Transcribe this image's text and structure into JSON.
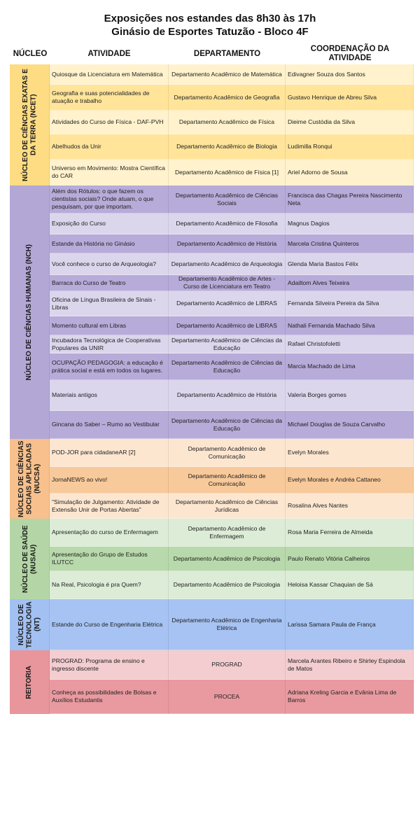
{
  "title": {
    "line1": "Exposições nos estandes das 8h30 às 17h",
    "line2": "Ginásio de Esportes Tatuzão - Bloco 4F"
  },
  "headers": {
    "nucleo": "NÚCLEO",
    "atividade": "ATIVIDADE",
    "departamento": "DEPARTAMENTO",
    "coordenacao": "COORDENAÇÃO DA ATIVIDADE"
  },
  "groups": [
    {
      "name": "NÚCLEO DE CIÊNCIAS EXATAS E DA TERRA (NCET)",
      "colors": {
        "light": "#fff2cc",
        "dark": "#ffe49a",
        "label": "#fddc84"
      },
      "rows": [
        {
          "atividade": "Quiosque da Licenciatura em Matemática",
          "departamento": "Departamento Acadêmico de Matemática",
          "coordenacao": "Edivagner Souza dos Santos",
          "shade": "light"
        },
        {
          "atividade": "Geografia e suas potencialidades de atuação e trabalho",
          "departamento": "Departamento Acadêmico de Geografia",
          "coordenacao": "Gustavo Henrique de Abreu Silva",
          "shade": "dark"
        },
        {
          "atividade": "Atividades do Curso de Física - DAF-PVH",
          "departamento": "Departamento Acadêmico de Física",
          "coordenacao": "Dieime Custódia da Silva",
          "shade": "light"
        },
        {
          "atividade": "Abelhudos da Unir",
          "departamento": "Departamento Acadêmico de Biologia",
          "coordenacao": "Ludimilla Ronqui",
          "shade": "dark"
        },
        {
          "atividade": "Universo em Movimento: Mostra Científica do CAR",
          "departamento": "Departamento Acadêmico de Física [1]",
          "coordenacao": "Ariel Adorno de Sousa",
          "shade": "light"
        }
      ]
    },
    {
      "name": "NÚCLEO DE CIÊNCIAS HUMANAS (NCH)",
      "colors": {
        "light": "#dcd6ec",
        "dark": "#b7abd9",
        "label": "#b3a7d6"
      },
      "rows": [
        {
          "atividade": "Além dos Rótulos: o que fazem os cientistas sociais? Onde atuam, o que pesquisam, por que importam.",
          "departamento": "Departamento Acadêmico de Ciências Sociais",
          "coordenacao": "Francisca das Chagas Pereira Nascimento Neta",
          "shade": "dark"
        },
        {
          "atividade": "Exposição do Curso",
          "departamento": "Departamento Acadêmico de Filosofia",
          "coordenacao": "Magnus Dagios",
          "shade": "light"
        },
        {
          "atividade": "Estande da História no Ginásio",
          "departamento": "Departamento Acadêmico de História",
          "coordenacao": "Marcela Cristina Quinteros",
          "shade": "dark"
        },
        {
          "atividade": "Você conhece o curso de Arqueologia?",
          "departamento": "Departamento Acadêmico de Arqueologia",
          "coordenacao": "Glenda Maria Bastos Félix",
          "shade": "light"
        },
        {
          "atividade": "Barraca do Curso de Teatro",
          "departamento": "Departamento Acadêmico de Artes - Curso de Licenciatura em Teatro",
          "coordenacao": "Adailtom Alves Teixeira",
          "shade": "dark"
        },
        {
          "atividade": "Oficina de Língua Brasileira de Sinais - Libras",
          "departamento": "Departamento Acadêmico de LIBRAS",
          "coordenacao": "Fernanda Silveira Pereira da Silva",
          "shade": "light"
        },
        {
          "atividade": "Momento cultural em Libras",
          "departamento": "Departamento Acadêmico de LIBRAS",
          "coordenacao": "Nathali Fernanda Machado Silva",
          "shade": "dark"
        },
        {
          "atividade": "Incubadora Tecnológica de Cooperativas Populares da UNIR",
          "departamento": "Departamento Acadêmico de Ciências da Educação",
          "coordenacao": "Rafael Christofoletti",
          "shade": "light"
        },
        {
          "atividade": "OCUPAÇÃO PEDAGOGIA: a educação é prática social e está em todos os lugares.",
          "departamento": "Departamento Acadêmico de Ciências da Educação",
          "coordenacao": "Marcia Machado de Lima",
          "shade": "dark"
        },
        {
          "atividade": "Materiais antigos",
          "departamento": "Departamento Acadêmico de História",
          "coordenacao": "Valeria Borges gomes",
          "shade": "light"
        },
        {
          "atividade": "Gincana do Saber – Rumo ao Vestibular",
          "departamento": "Departamento Acadêmico de Ciências da Educação",
          "coordenacao": "Michael Douglas de Souza Carvalho",
          "shade": "dark"
        }
      ]
    },
    {
      "name": "NÚCLEO DE CIÊNCIAS SOCIAIS APLICADAS (NUCSA)",
      "colors": {
        "light": "#fde6d0",
        "dark": "#f8c99a",
        "label": "#f7c08c"
      },
      "rows": [
        {
          "atividade": "POD-JOR para cidadaneAR [2]",
          "departamento": "Departamento Acadêmico de Comunicação",
          "coordenacao": "Evelyn Morales",
          "shade": "light"
        },
        {
          "atividade": "JornaNEWS ao vivo!",
          "departamento": "Departamento Acadêmico de Comunicação",
          "coordenacao": "Evelyn Morales e Andréa Cattaneo",
          "shade": "dark"
        },
        {
          "atividade": "\"Simulação de Julgamento: Atividade de Extensão Unir de Portas Abertas\"",
          "departamento": "Departamento Acadêmico de Ciências Jurídicas",
          "coordenacao": "Rosalina Alves Nantes",
          "shade": "light"
        }
      ]
    },
    {
      "name": "NÚCLEO DE SAÚDE (NUSAU)",
      "colors": {
        "light": "#dcecd6",
        "dark": "#b8d9ab",
        "label": "#b4d6a6"
      },
      "rows": [
        {
          "atividade": "Apresentação do curso de Enfermagem",
          "departamento": "Departamento Acadêmico de Enfermagem",
          "coordenacao": "Rosa Maria Ferreira de Almeida",
          "shade": "light"
        },
        {
          "atividade": "Apresentação do Grupo de Estudos ILUTCC",
          "departamento": "Departamento Acadêmico de Psicologia",
          "coordenacao": "Paulo Renato Vitória Calheiros",
          "shade": "dark"
        },
        {
          "atividade": "Na Real, Psicologia é pra Quem?",
          "departamento": "Departamento Acadêmico de Psicologia",
          "coordenacao": "Heloisa Kassar Chaquian de Sá",
          "shade": "light"
        }
      ]
    },
    {
      "name": "NÚCLEO DE TECNOLOGIA (NT)",
      "colors": {
        "light": "#a6c3f3",
        "dark": "#a6c3f3",
        "label": "#a2c0f2"
      },
      "rows": [
        {
          "atividade": "Estande do Curso de Engenharia Elétrica",
          "departamento": "Departamento Acadêmico de Engenharia Elétrica",
          "coordenacao": "Larissa Samara Paula de França",
          "shade": "light"
        }
      ]
    },
    {
      "name": "REITORIA",
      "colors": {
        "light": "#f3cdcf",
        "dark": "#e89aa0",
        "label": "#e8959b"
      },
      "rows": [
        {
          "atividade": "PROGRAD: Programa de ensino e ingresso discente",
          "departamento": "PROGRAD",
          "coordenacao": "Marcela Arantes Ribeiro e Shirley Espindola de Matos",
          "shade": "light"
        },
        {
          "atividade": "Conheça as possibilidades de Bolsas e Auxílios Estudantis",
          "departamento": "PROCEA",
          "coordenacao": "Adriana Kreling Garcia e Evânia Lima de Barros",
          "shade": "dark"
        }
      ]
    }
  ]
}
